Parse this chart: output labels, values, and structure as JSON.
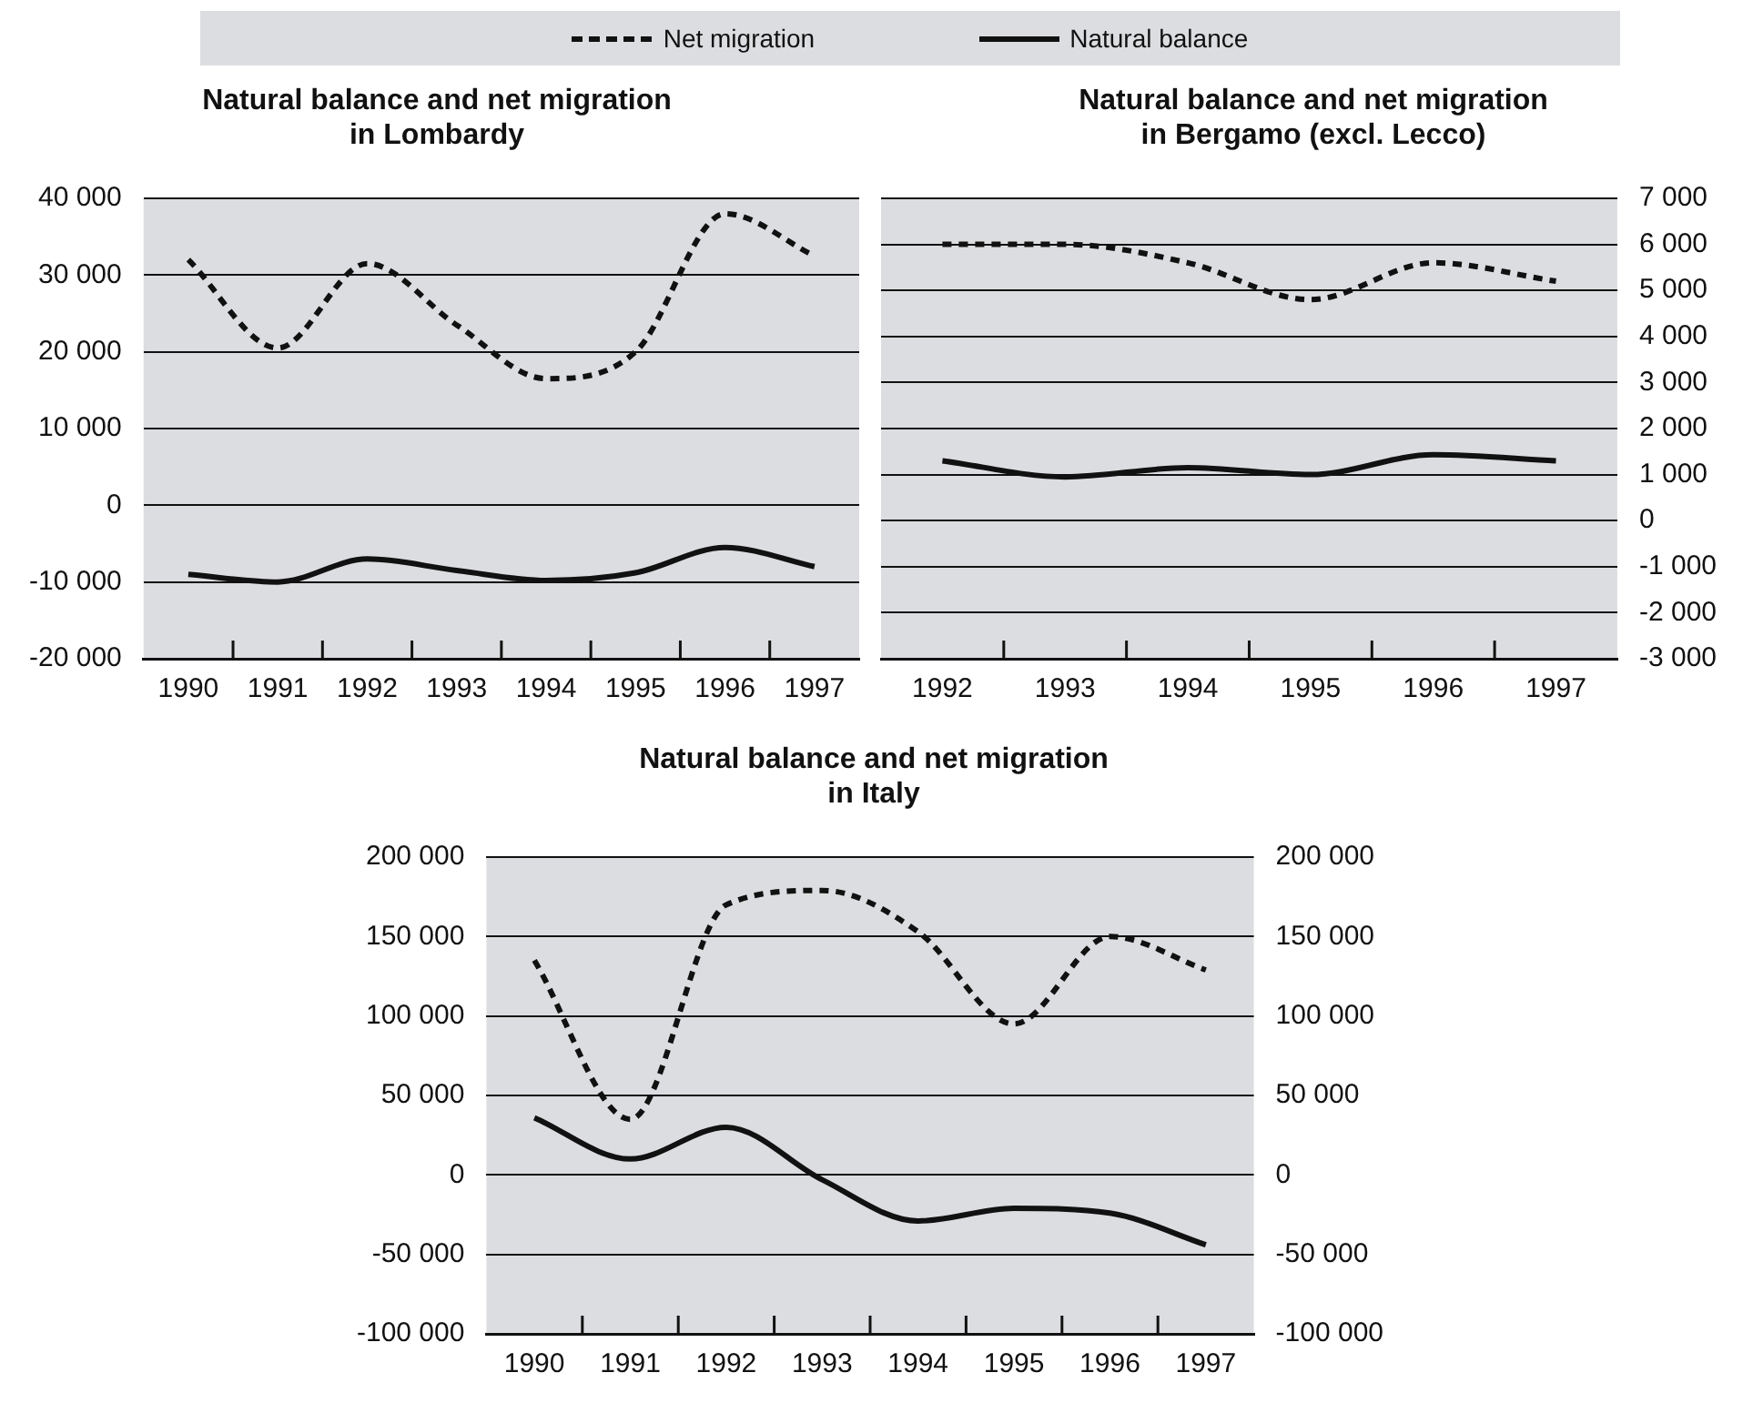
{
  "chart_data": [
    {
      "type": "line",
      "title": "Natural balance and net migration in Lombardy",
      "categories": [
        "1990",
        "1991",
        "1992",
        "1993",
        "1994",
        "1995",
        "1996",
        "1997"
      ],
      "series": [
        {
          "name": "Net migration",
          "color": "#111111",
          "line_style": "dashed",
          "values": [
            32000,
            20500,
            31500,
            23500,
            16500,
            20000,
            38000,
            32500
          ]
        },
        {
          "name": "Natural balance",
          "color": "#111111",
          "line_style": "solid",
          "values": [
            -9000,
            -10000,
            -7000,
            -8500,
            -9800,
            -8800,
            -5500,
            -8000
          ]
        }
      ],
      "ylim": [
        -20000,
        40000
      ],
      "yticks": [
        {
          "value": -20000,
          "label": "-20 000"
        },
        {
          "value": -10000,
          "label": "-10 000"
        },
        0,
        {
          "value": 10000,
          "label": "10 000"
        },
        {
          "value": 20000,
          "label": "20 000"
        },
        {
          "value": 30000,
          "label": "30 000"
        },
        {
          "value": 40000,
          "label": "40 000"
        }
      ],
      "grid": "y",
      "legend": "top"
    },
    {
      "type": "line",
      "title": "Natural balance and net migration in Bergamo (excl. Lecco)",
      "categories": [
        "1992",
        "1993",
        "1994",
        "1995",
        "1996",
        "1997"
      ],
      "series": [
        {
          "color": "#111111",
          "line_style": "dashed",
          "axis": "y2",
          "values": [
            6000,
            6000,
            5600,
            4800,
            5600,
            5200
          ]
        },
        {
          "color": "#111111",
          "line_style": "solid",
          "axis": "y2",
          "values": [
            1300,
            950,
            1150,
            1000,
            1430,
            1300
          ]
        }
      ],
      "y2lim": [
        -3000,
        7000
      ],
      "y2ticks": [
        {
          "value": -3000,
          "label": "-3 000"
        },
        {
          "value": -2000,
          "label": "-2 000"
        },
        {
          "value": -1000,
          "label": "-1 000"
        },
        0,
        {
          "value": 1000,
          "label": "1 000"
        },
        {
          "value": 2000,
          "label": "2 000"
        },
        {
          "value": 3000,
          "label": "3 000"
        },
        {
          "value": 4000,
          "label": "4 000"
        },
        {
          "value": 5000,
          "label": "5 000"
        },
        {
          "value": 6000,
          "label": "6 000"
        },
        {
          "value": 7000,
          "label": "7 000"
        }
      ],
      "grid": "y"
    },
    {
      "type": "line",
      "title": "Natural balance and net migration in Italy",
      "categories": [
        "1990",
        "1991",
        "1992",
        "1993",
        "1994",
        "1995",
        "1996",
        "1997"
      ],
      "series": [
        {
          "color": "#111111",
          "line_style": "dashed",
          "values": [
            135000,
            35000,
            170000,
            179000,
            153000,
            95000,
            150000,
            129000
          ]
        },
        {
          "color": "#111111",
          "line_style": "solid",
          "values": [
            36000,
            10000,
            30000,
            -3000,
            -29000,
            -21000,
            -24000,
            -44000
          ]
        }
      ],
      "ylim": [
        -100000,
        200000
      ],
      "yticks": [
        {
          "value": -100000,
          "label": "-100 000"
        },
        {
          "value": -50000,
          "label": "-50 000"
        },
        0,
        {
          "value": 50000,
          "label": "50 000"
        },
        {
          "value": 100000,
          "label": "100 000"
        },
        {
          "value": 150000,
          "label": "150 000"
        },
        {
          "value": 200000,
          "label": "200 000"
        }
      ],
      "y2lim": [
        -100000,
        200000
      ],
      "y2ticks": [
        {
          "value": -100000,
          "label": "-100 000"
        },
        {
          "value": -50000,
          "label": "-50 000"
        },
        0,
        {
          "value": 50000,
          "label": "50 000"
        },
        {
          "value": 100000,
          "label": "100 000"
        },
        {
          "value": 150000,
          "label": "150 000"
        },
        {
          "value": 200000,
          "label": "200 000"
        }
      ],
      "grid": "y"
    }
  ]
}
